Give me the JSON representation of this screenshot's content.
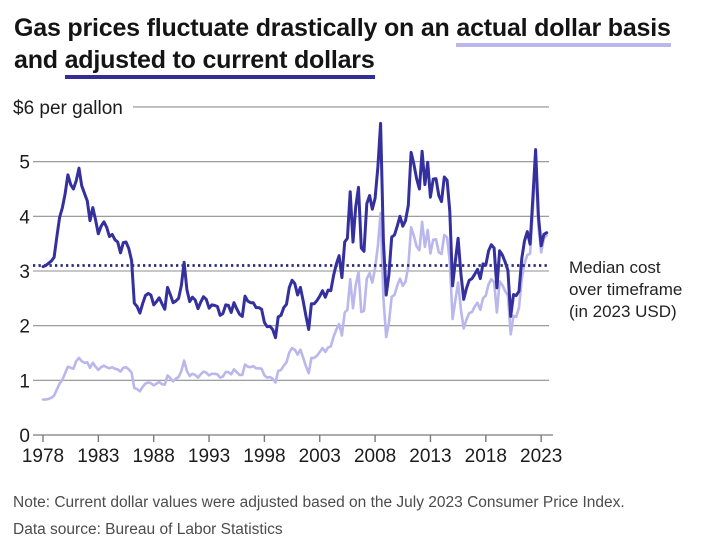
{
  "title": {
    "part1": "Gas prices fluctuate drastically on an ",
    "part2": "actual dollar basis",
    "part3": " and ",
    "part4": "adjusted to current dollars"
  },
  "annotation": {
    "line1": "Median cost",
    "line2": "over timeframe",
    "line3": "(in 2023 USD)"
  },
  "footer": {
    "note": "Note: Current dollar values were adjusted based on the July 2023 Consumer Price Index.",
    "source": "Data source: Bureau of Labor Statistics"
  },
  "colors": {
    "actual_line": "#b9b7ec",
    "adjusted_line": "#34309e",
    "median_line": "#2b2a7e",
    "grid": "#8f8f8f",
    "underline_light": "#bab7ee",
    "underline_dark": "#342d99"
  },
  "chart_data": {
    "type": "line",
    "top_axis_label": "$6 per gallon",
    "ylabel": "$ per gallon",
    "xlabel": "",
    "y_ticks": [
      0,
      1,
      2,
      3,
      4,
      5
    ],
    "y_max": 6,
    "ylim": [
      0,
      6
    ],
    "x_ticks": [
      1978,
      1983,
      1988,
      1993,
      1998,
      2003,
      2008,
      2013,
      2018,
      2023
    ],
    "x_range": [
      1978,
      2023.5
    ],
    "grid": "on",
    "median": {
      "value": 3.1,
      "label": "Median cost over timeframe (in 2023 USD)"
    },
    "x": [
      1978,
      1978.25,
      1978.5,
      1978.75,
      1979,
      1979.25,
      1979.5,
      1979.75,
      1980,
      1980.25,
      1980.5,
      1980.75,
      1981,
      1981.25,
      1981.5,
      1981.75,
      1982,
      1982.25,
      1982.5,
      1982.75,
      1983,
      1983.25,
      1983.5,
      1983.75,
      1984,
      1984.25,
      1984.5,
      1984.75,
      1985,
      1985.25,
      1985.5,
      1985.75,
      1986,
      1986.25,
      1986.5,
      1986.75,
      1987,
      1987.25,
      1987.5,
      1987.75,
      1988,
      1988.25,
      1988.5,
      1988.75,
      1989,
      1989.25,
      1989.5,
      1989.75,
      1990,
      1990.25,
      1990.5,
      1990.75,
      1991,
      1991.25,
      1991.5,
      1991.75,
      1992,
      1992.25,
      1992.5,
      1992.75,
      1993,
      1993.25,
      1993.5,
      1993.75,
      1994,
      1994.25,
      1994.5,
      1994.75,
      1995,
      1995.25,
      1995.5,
      1995.75,
      1996,
      1996.25,
      1996.5,
      1996.75,
      1997,
      1997.25,
      1997.5,
      1997.75,
      1998,
      1998.25,
      1998.5,
      1998.75,
      1999,
      1999.25,
      1999.5,
      1999.75,
      2000,
      2000.25,
      2000.5,
      2000.75,
      2001,
      2001.25,
      2001.5,
      2001.75,
      2002,
      2002.25,
      2002.5,
      2002.75,
      2003,
      2003.25,
      2003.5,
      2003.75,
      2004,
      2004.25,
      2004.5,
      2004.75,
      2005,
      2005.25,
      2005.5,
      2005.75,
      2006,
      2006.25,
      2006.5,
      2006.75,
      2007,
      2007.25,
      2007.5,
      2007.75,
      2008,
      2008.25,
      2008.5,
      2008.75,
      2009,
      2009.25,
      2009.5,
      2009.75,
      2010,
      2010.25,
      2010.5,
      2010.75,
      2011,
      2011.25,
      2011.5,
      2011.75,
      2012,
      2012.25,
      2012.5,
      2012.75,
      2013,
      2013.25,
      2013.5,
      2013.75,
      2014,
      2014.25,
      2014.5,
      2014.75,
      2015,
      2015.25,
      2015.5,
      2015.75,
      2016,
      2016.25,
      2016.5,
      2016.75,
      2017,
      2017.25,
      2017.5,
      2017.75,
      2018,
      2018.25,
      2018.5,
      2018.75,
      2019,
      2019.25,
      2019.5,
      2019.75,
      2020,
      2020.25,
      2020.5,
      2020.75,
      2021,
      2021.25,
      2021.5,
      2021.75,
      2022,
      2022.25,
      2022.5,
      2022.75,
      2023,
      2023.25,
      2023.5
    ],
    "series": [
      {
        "name": "actual dollars",
        "color": "#b9b7ec",
        "width": 2.6,
        "values": [
          0.65,
          0.65,
          0.66,
          0.68,
          0.72,
          0.83,
          0.94,
          1.01,
          1.13,
          1.25,
          1.23,
          1.21,
          1.35,
          1.41,
          1.35,
          1.32,
          1.33,
          1.23,
          1.32,
          1.25,
          1.19,
          1.24,
          1.27,
          1.24,
          1.22,
          1.24,
          1.21,
          1.2,
          1.16,
          1.23,
          1.24,
          1.2,
          1.14,
          0.86,
          0.84,
          0.8,
          0.88,
          0.94,
          0.96,
          0.95,
          0.91,
          0.94,
          0.97,
          0.93,
          0.92,
          1.09,
          1.04,
          0.98,
          1.03,
          1.06,
          1.17,
          1.36,
          1.17,
          1.08,
          1.12,
          1.1,
          1.05,
          1.11,
          1.16,
          1.14,
          1.09,
          1.12,
          1.12,
          1.11,
          1.05,
          1.07,
          1.15,
          1.15,
          1.11,
          1.2,
          1.15,
          1.1,
          1.1,
          1.29,
          1.25,
          1.24,
          1.26,
          1.22,
          1.22,
          1.21,
          1.09,
          1.05,
          1.06,
          1.03,
          0.96,
          1.17,
          1.19,
          1.27,
          1.33,
          1.51,
          1.59,
          1.56,
          1.47,
          1.56,
          1.42,
          1.26,
          1.13,
          1.41,
          1.41,
          1.45,
          1.52,
          1.59,
          1.52,
          1.6,
          1.62,
          1.8,
          1.93,
          2.03,
          1.82,
          2.24,
          2.29,
          2.85,
          2.32,
          2.74,
          2.98,
          2.25,
          2.27,
          2.86,
          2.96,
          2.79,
          3.05,
          3.46,
          4.06,
          2.5,
          1.79,
          2.05,
          2.53,
          2.56,
          2.73,
          2.86,
          2.73,
          2.8,
          3.09,
          3.8,
          3.65,
          3.45,
          3.38,
          3.9,
          3.44,
          3.75,
          3.32,
          3.57,
          3.58,
          3.34,
          3.31,
          3.66,
          3.61,
          3.17,
          2.12,
          2.47,
          2.79,
          2.29,
          1.95,
          2.11,
          2.23,
          2.25,
          2.35,
          2.42,
          2.29,
          2.5,
          2.55,
          2.76,
          2.85,
          2.8,
          2.24,
          2.81,
          2.74,
          2.63,
          2.55,
          1.84,
          2.18,
          2.16,
          2.33,
          2.86,
          3.14,
          3.29,
          3.32,
          4.11,
          4.95,
          3.82,
          3.34,
          3.6,
          3.65
        ]
      },
      {
        "name": "adjusted to current dollars (2023 USD)",
        "color": "#34309e",
        "width": 3,
        "values": [
          3.08,
          3.1,
          3.14,
          3.18,
          3.25,
          3.62,
          3.98,
          4.16,
          4.41,
          4.76,
          4.58,
          4.5,
          4.65,
          4.88,
          4.56,
          4.42,
          4.28,
          3.92,
          4.16,
          3.93,
          3.68,
          3.82,
          3.9,
          3.8,
          3.63,
          3.67,
          3.57,
          3.53,
          3.33,
          3.52,
          3.53,
          3.41,
          3.19,
          2.41,
          2.35,
          2.23,
          2.4,
          2.55,
          2.59,
          2.56,
          2.38,
          2.44,
          2.51,
          2.4,
          2.3,
          2.7,
          2.57,
          2.42,
          2.45,
          2.5,
          2.74,
          3.16,
          2.66,
          2.44,
          2.52,
          2.47,
          2.31,
          2.43,
          2.53,
          2.48,
          2.32,
          2.38,
          2.37,
          2.35,
          2.19,
          2.22,
          2.38,
          2.37,
          2.24,
          2.42,
          2.31,
          2.21,
          2.17,
          2.54,
          2.45,
          2.42,
          2.42,
          2.33,
          2.33,
          2.3,
          2.06,
          1.98,
          1.99,
          1.93,
          1.78,
          2.16,
          2.19,
          2.33,
          2.39,
          2.7,
          2.83,
          2.77,
          2.56,
          2.7,
          2.46,
          2.18,
          1.93,
          2.4,
          2.4,
          2.46,
          2.54,
          2.64,
          2.52,
          2.65,
          2.64,
          2.92,
          3.13,
          3.28,
          2.88,
          3.53,
          3.6,
          4.45,
          3.53,
          4.17,
          4.53,
          3.42,
          3.36,
          4.23,
          4.38,
          4.13,
          4.33,
          4.91,
          5.7,
          3.55,
          2.56,
          2.93,
          3.62,
          3.66,
          3.82,
          4.0,
          3.82,
          3.92,
          4.2,
          5.17,
          4.96,
          4.69,
          4.5,
          5.19,
          4.58,
          4.99,
          4.35,
          4.68,
          4.69,
          4.38,
          4.27,
          4.72,
          4.66,
          4.09,
          2.73,
          3.19,
          3.6,
          2.95,
          2.48,
          2.68,
          2.83,
          2.86,
          2.94,
          3.03,
          2.86,
          3.13,
          3.11,
          3.37,
          3.48,
          3.42,
          2.69,
          3.37,
          3.29,
          3.16,
          3.01,
          2.17,
          2.57,
          2.55,
          2.63,
          3.23,
          3.55,
          3.72,
          3.49,
          4.32,
          5.22,
          4.01,
          3.46,
          3.67,
          3.7
        ]
      }
    ]
  }
}
